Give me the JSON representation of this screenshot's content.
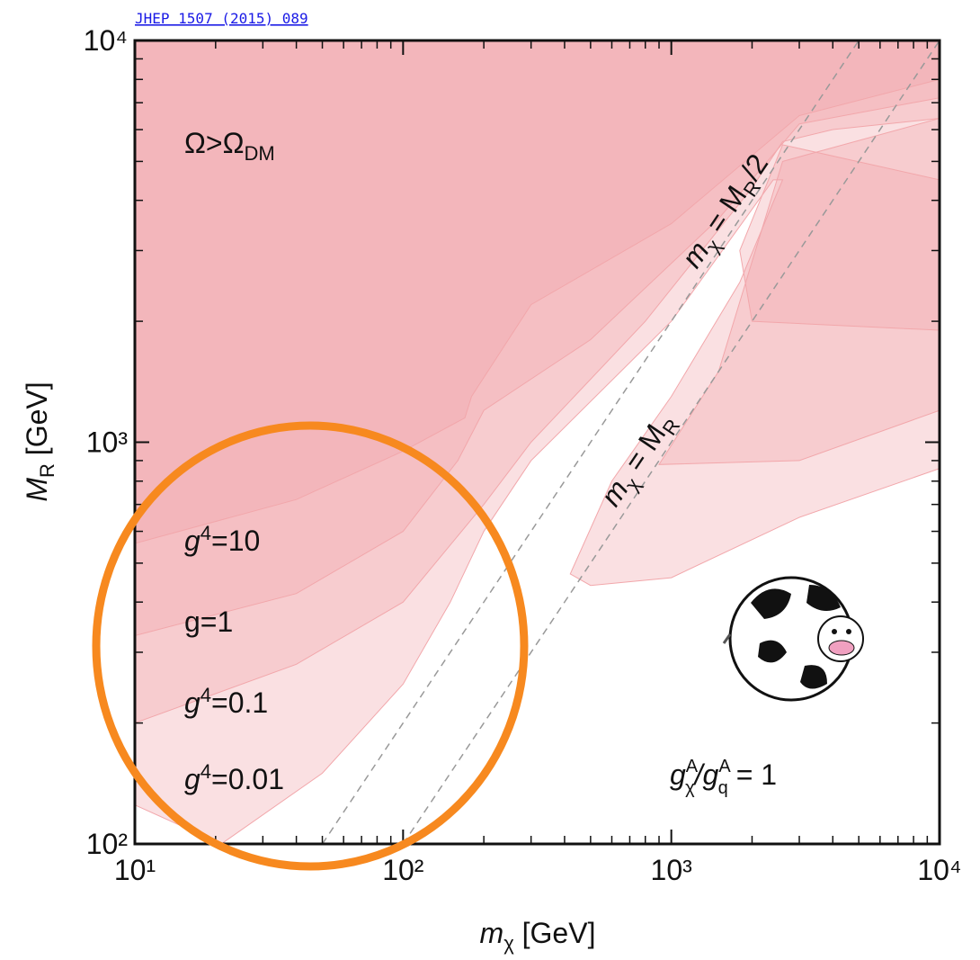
{
  "source": "JHEP 1507 (2015) 089",
  "chart_data": {
    "type": "contour",
    "xlabel": [
      "m",
      "χ",
      " [GeV]"
    ],
    "ylabel": [
      "M",
      "R",
      " [GeV]"
    ],
    "log_x": true,
    "log_y": true,
    "minor_ticks": true,
    "xlim": [
      10,
      10000
    ],
    "ylim": [
      100,
      10000
    ],
    "xticks": [
      {
        "value": 10,
        "label": "10¹"
      },
      {
        "value": 100,
        "label": "10²"
      },
      {
        "value": 1000,
        "label": "10³"
      },
      {
        "value": 10000,
        "label": "10⁴"
      }
    ],
    "yticks": [
      {
        "value": 100,
        "label": "10²"
      },
      {
        "value": 1000,
        "label": "10³"
      },
      {
        "value": 10000,
        "label": "10⁴"
      }
    ],
    "series": [
      {
        "color": "#f2a7ab",
        "x": [
          10,
          10000,
          10000,
          3000,
          1000,
          500,
          420,
          600,
          1000,
          1800,
          2600,
          2400,
          1000,
          300,
          200,
          150,
          100,
          50,
          21,
          10
        ],
        "y": [
          10000,
          10000,
          860,
          650,
          460,
          440,
          470,
          800,
          1300,
          2500,
          4500,
          4500,
          2000,
          900,
          600,
          400,
          250,
          150,
          100,
          125
        ]
      },
      {
        "color": "#f2a7ab",
        "x": [
          10,
          10000,
          10000,
          4000,
          2600,
          2000,
          800,
          300,
          200,
          100,
          40,
          10
        ],
        "y": [
          10000,
          10000,
          6400,
          6000,
          5600,
          4300,
          2000,
          1000,
          700,
          400,
          280,
          200
        ]
      },
      {
        "color": "#f2a7ab",
        "x": [
          10000,
          10000,
          3000,
          900,
          1500,
          2600
        ],
        "y": [
          6400,
          1200,
          900,
          880,
          1500,
          5000
        ]
      },
      {
        "color": "#f2a7ab",
        "x": [
          10,
          10000,
          10000,
          3000,
          1500,
          500,
          200,
          160,
          100,
          40,
          10
        ],
        "y": [
          10000,
          10000,
          7200,
          6200,
          3600,
          1800,
          1200,
          900,
          600,
          420,
          330
        ]
      },
      {
        "color": "#f2a7ab",
        "x": [
          10000,
          10000,
          2000,
          1800,
          2600
        ],
        "y": [
          4500,
          1900,
          2000,
          3000,
          5500
        ]
      },
      {
        "color": "#f2a7ab",
        "x": [
          10,
          10000,
          10000,
          3000,
          1000,
          300,
          180,
          170,
          100,
          40,
          10
        ],
        "y": [
          10000,
          10000,
          8000,
          6500,
          3500,
          2200,
          1300,
          1150,
          950,
          720,
          560
        ]
      }
    ],
    "lines": [
      {
        "color": "#999999",
        "x": [
          50,
          5000
        ],
        "y": [
          100,
          10000
        ]
      },
      {
        "color": "#999999",
        "x": [
          100,
          10000
        ],
        "y": [
          100,
          10000
        ]
      }
    ],
    "annotations": {
      "omega": [
        "Ω>Ω",
        "DM"
      ],
      "line_half": [
        "m",
        "χ",
        " = M",
        "R",
        "/2"
      ],
      "line_eq": [
        "m",
        "χ",
        " = M",
        "R"
      ],
      "g4_10": [
        "g",
        "4",
        "=10"
      ],
      "g1": "g=1",
      "g4_01": [
        "g",
        "4",
        "=0.1"
      ],
      "g4_001": [
        "g",
        "4",
        "=0.01"
      ],
      "ratio": [
        "g",
        "A",
        "χ",
        "/g",
        "A",
        "q",
        " = 1"
      ]
    }
  }
}
